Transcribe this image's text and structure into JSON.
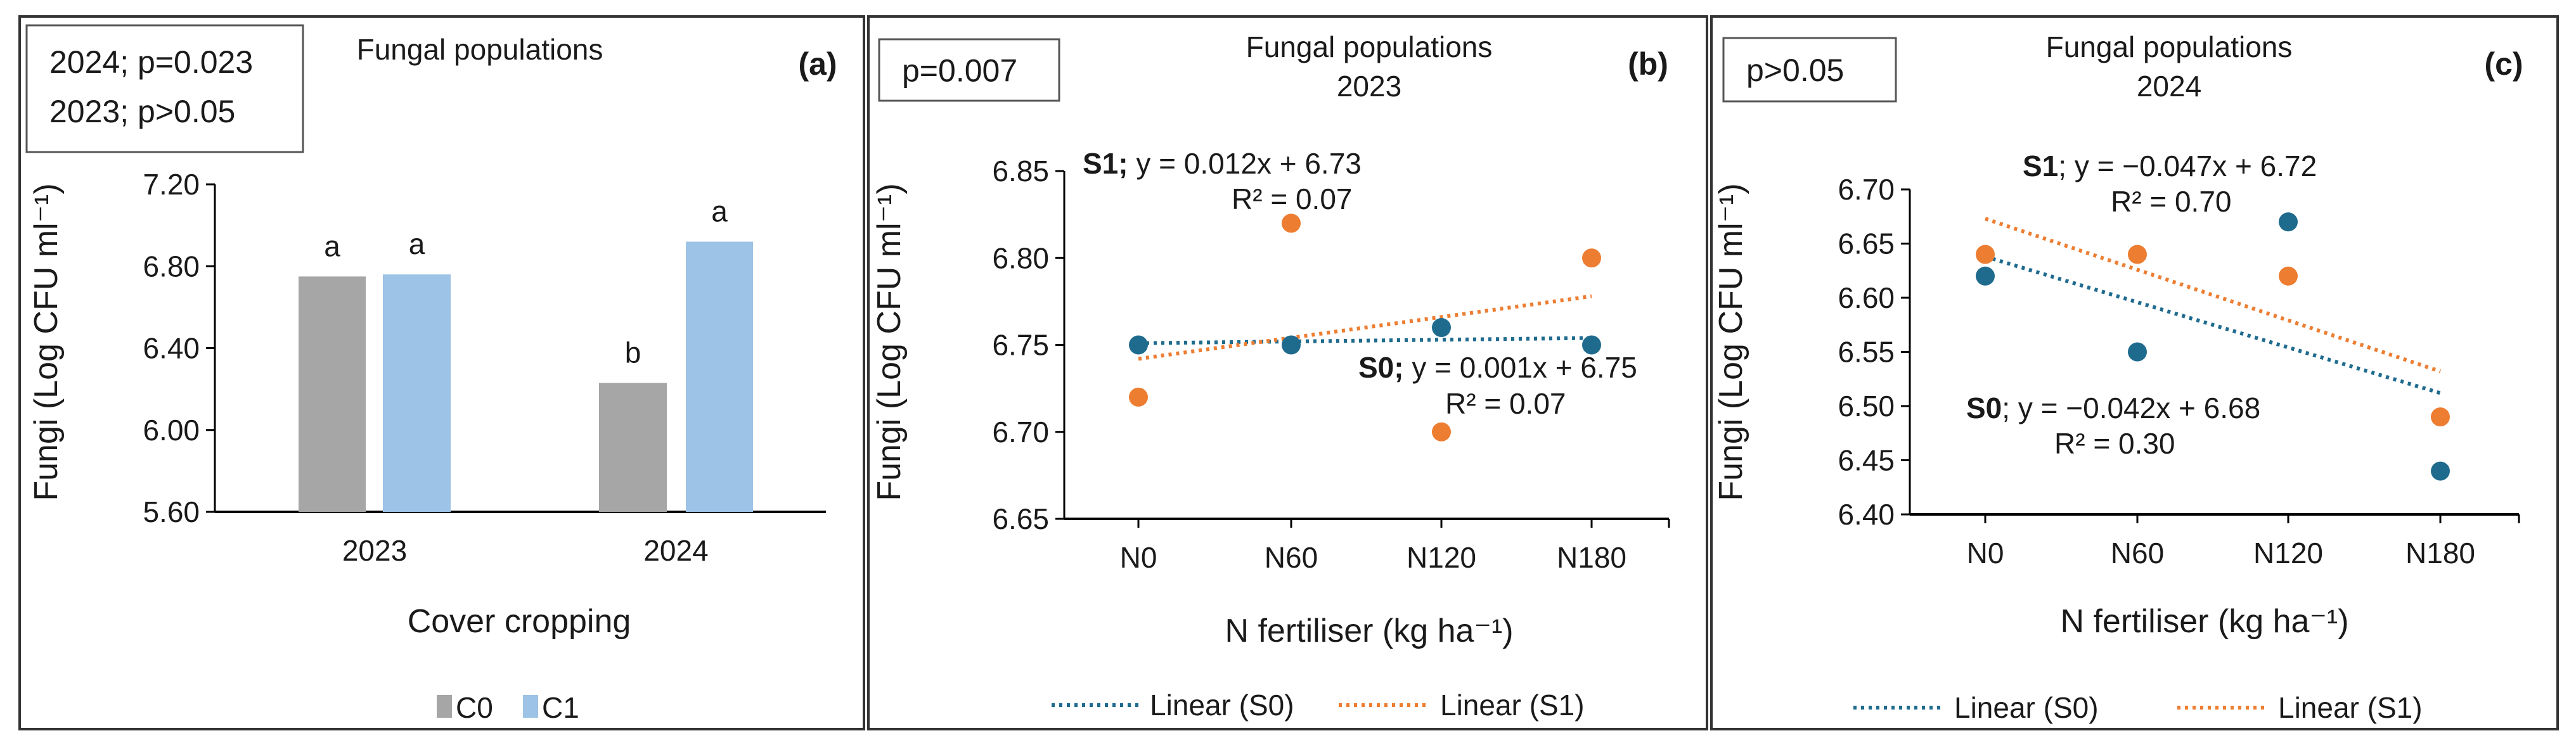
{
  "colors": {
    "C0": "#a6a6a6",
    "C1": "#9dc3e6",
    "S0": "#1f6b8e",
    "S1": "#ed7d31"
  },
  "chart_data": [
    {
      "type": "bar",
      "title": "Fungal populations",
      "panel_label": "(a)",
      "stats": [
        "2024; p=0.023",
        "2023; p>0.05"
      ],
      "xlabel": "Cover cropping",
      "ylabel": "Fungi (Log CFU ml⁻¹)",
      "ylim": [
        5.6,
        7.2
      ],
      "yticks": [
        "5.60",
        "6.00",
        "6.40",
        "6.80",
        "7.20"
      ],
      "categories": [
        "2023",
        "2024"
      ],
      "series": [
        {
          "name": "C0",
          "values": [
            6.75,
            6.23
          ],
          "letters": [
            "a",
            "b"
          ]
        },
        {
          "name": "C1",
          "values": [
            6.76,
            6.92
          ],
          "letters": [
            "a",
            "a"
          ]
        }
      ],
      "legend": [
        "C0",
        "C1"
      ]
    },
    {
      "type": "scatter",
      "title": "Fungal populations",
      "subtitle": "2023",
      "panel_label": "(b)",
      "stats": [
        "p=0.007"
      ],
      "xlabel": "N fertiliser (kg ha⁻¹)",
      "ylabel": "Fungi (Log CFU ml⁻¹)",
      "ylim": [
        6.65,
        6.85
      ],
      "yticks": [
        "6.65",
        "6.70",
        "6.75",
        "6.80",
        "6.85"
      ],
      "categories": [
        "N0",
        "N60",
        "N120",
        "N180"
      ],
      "series": [
        {
          "name": "S0",
          "values": [
            6.75,
            6.75,
            6.76,
            6.75
          ],
          "trend": {
            "slope": 0.001,
            "intercept": 6.75
          },
          "bold": "S0;",
          "equation": " y = 0.001x + 6.75",
          "r2": "R² = 0.07",
          "legend": "Linear (S0)"
        },
        {
          "name": "S1",
          "values": [
            6.72,
            6.82,
            6.7,
            6.8
          ],
          "trend": {
            "slope": 0.012,
            "intercept": 6.73
          },
          "bold": "S1;",
          "equation": " y = 0.012x + 6.73",
          "r2": "R² = 0.07",
          "legend": "Linear (S1)"
        }
      ]
    },
    {
      "type": "scatter",
      "title": "Fungal populations",
      "subtitle": "2024",
      "panel_label": "(c)",
      "stats": [
        "p>0.05"
      ],
      "xlabel": "N fertiliser (kg ha⁻¹)",
      "ylabel": "Fungi (Log CFU ml⁻¹)",
      "ylim": [
        6.4,
        6.7
      ],
      "yticks": [
        "6.40",
        "6.45",
        "6.50",
        "6.55",
        "6.60",
        "6.65",
        "6.70"
      ],
      "categories": [
        "N0",
        "N60",
        "N120",
        "N180"
      ],
      "series": [
        {
          "name": "S0",
          "values": [
            6.62,
            6.55,
            6.67,
            6.44
          ],
          "trend": {
            "slope": -0.042,
            "intercept": 6.68
          },
          "bold": "S0",
          "equation": "; y = −0.042x + 6.68",
          "r2": "R² = 0.30",
          "legend": "Linear (S0)"
        },
        {
          "name": "S1",
          "values": [
            6.64,
            6.64,
            6.62,
            6.49
          ],
          "trend": {
            "slope": -0.047,
            "intercept": 6.72
          },
          "bold": "S1",
          "equation": "; y = −0.047x + 6.72",
          "r2": "R² = 0.70",
          "legend": "Linear (S1)"
        }
      ]
    }
  ]
}
